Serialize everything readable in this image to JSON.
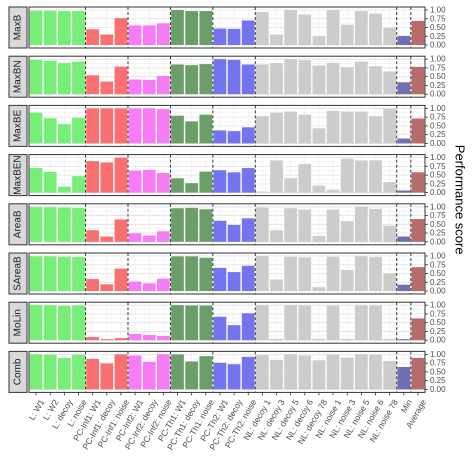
{
  "chart_data": {
    "type": "bar",
    "ylabel": "Performance score",
    "ylim": [
      0,
      1
    ],
    "yticks": [
      "0.00",
      "0.25",
      "0.50",
      "0.75",
      "1.00"
    ],
    "grid": true,
    "categories": [
      "L: W1",
      "L: W2",
      "L: decoy",
      "L: noise",
      "PC-Inf1: W1",
      "PC-Inf1: decoy",
      "PC-Inf1: noise",
      "PC-Inf2: W1",
      "PC-Inf2: decoy",
      "PC-Inf2: noise",
      "PC-Th1: W1",
      "PC-Th1: decoy",
      "PC-Th1: noise",
      "PC-Th2: W1",
      "PC-Th2: decoy",
      "PC-Th2: noise",
      "NL: decoy 1",
      "NL: decoy 3",
      "NL: decoy 5",
      "NL: decoy 6",
      "NL: decoy 78",
      "NL: noise 1",
      "NL: noise 3",
      "NL: noise 5",
      "NL: noise 6",
      "NL: noise 78",
      "Min",
      "Average"
    ],
    "group_colors": {
      "L": "#77ee77",
      "PC-Inf1": "#f87070",
      "PC-Inf2": "#f67cf6",
      "PC-Th1": "#6a9f6a",
      "PC-Th2": "#7474ee",
      "NL": "#cccccc",
      "Min": "#6f6fb4",
      "Average": "#b86b6b"
    },
    "facets": [
      {
        "name": "MaxB",
        "values": [
          0.98,
          0.98,
          0.97,
          0.97,
          0.45,
          0.3,
          0.77,
          0.56,
          0.56,
          0.62,
          1.0,
          0.97,
          0.97,
          0.47,
          0.46,
          0.7,
          0.94,
          0.3,
          1.0,
          0.87,
          0.25,
          1.0,
          0.58,
          0.97,
          0.9,
          0.49,
          0.26,
          0.69
        ]
      },
      {
        "name": "MaxBN",
        "values": [
          0.98,
          0.96,
          0.89,
          0.93,
          0.54,
          0.36,
          0.79,
          0.42,
          0.41,
          0.52,
          0.85,
          0.83,
          0.86,
          1.0,
          0.98,
          0.85,
          0.85,
          0.89,
          1.0,
          0.97,
          0.82,
          0.9,
          0.77,
          0.93,
          0.8,
          0.65,
          0.34,
          0.78
        ]
      },
      {
        "name": "MaxBE",
        "values": [
          0.88,
          0.72,
          0.55,
          0.73,
          1.0,
          1.0,
          1.0,
          1.0,
          1.0,
          0.98,
          0.79,
          0.63,
          0.82,
          0.37,
          0.35,
          0.46,
          0.78,
          0.88,
          0.91,
          0.82,
          0.43,
          0.93,
          0.91,
          0.91,
          0.78,
          0.99,
          0.14,
          0.71
        ]
      },
      {
        "name": "MaxBEN",
        "values": [
          0.7,
          0.59,
          0.17,
          0.47,
          0.9,
          0.86,
          1.0,
          0.63,
          0.65,
          0.56,
          0.41,
          0.27,
          0.6,
          0.64,
          0.58,
          0.7,
          0.03,
          0.92,
          0.41,
          0.82,
          0.2,
          0.08,
          0.97,
          0.92,
          0.92,
          0.3,
          0.06,
          0.58
        ]
      },
      {
        "name": "AreaB",
        "values": [
          0.99,
          0.99,
          0.98,
          0.97,
          0.33,
          0.15,
          0.64,
          0.24,
          0.18,
          0.3,
          0.96,
          0.97,
          0.93,
          0.6,
          0.48,
          0.67,
          0.98,
          0.33,
          0.96,
          0.92,
          0.17,
          0.92,
          0.59,
          1.0,
          0.94,
          0.46,
          0.15,
          0.65
        ]
      },
      {
        "name": "SAreaB",
        "values": [
          0.99,
          0.99,
          0.98,
          0.97,
          0.34,
          0.19,
          0.64,
          0.27,
          0.22,
          0.35,
          0.99,
          0.99,
          0.95,
          0.66,
          0.54,
          0.72,
          1.0,
          0.33,
          0.98,
          0.96,
          0.11,
          0.98,
          0.6,
          0.99,
          0.97,
          0.5,
          0.18,
          0.68
        ]
      },
      {
        "name": "MoLin",
        "values": [
          1.0,
          1.0,
          0.98,
          0.99,
          0.09,
          0.03,
          0.06,
          0.18,
          0.15,
          0.12,
          1.0,
          0.99,
          0.99,
          0.67,
          0.43,
          0.77,
          1.0,
          0.04,
          1.0,
          0.99,
          0.04,
          0.99,
          0.04,
          0.99,
          0.99,
          0.04,
          0.03,
          0.62
        ]
      },
      {
        "name": "Comb",
        "values": [
          1.0,
          0.99,
          0.9,
          0.99,
          0.87,
          0.74,
          1.0,
          0.97,
          0.79,
          1.0,
          1.0,
          0.8,
          0.95,
          0.76,
          0.72,
          0.93,
          0.98,
          0.84,
          1.0,
          0.97,
          0.83,
          0.99,
          0.91,
          1.0,
          0.99,
          0.81,
          0.64,
          0.9
        ]
      }
    ]
  }
}
